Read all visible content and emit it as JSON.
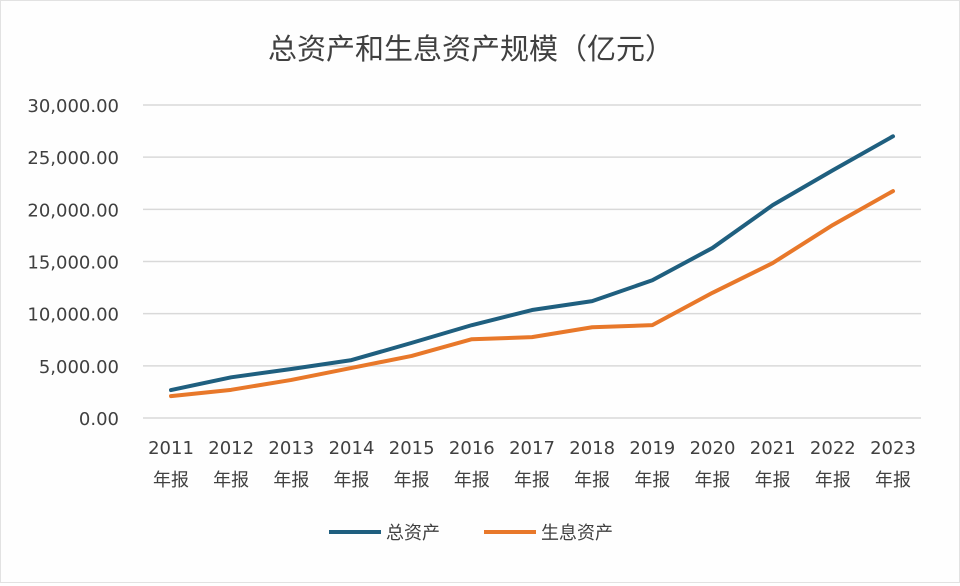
{
  "chart_data": {
    "type": "line",
    "title": "总资产和生息资产规模（亿元）",
    "categories": [
      "2011年报",
      "2012年报",
      "2013年报",
      "2014年报",
      "2015年报",
      "2016年报",
      "2017年报",
      "2018年报",
      "2019年报",
      "2020年报",
      "2021年报",
      "2022年报",
      "2023年报"
    ],
    "category_years": [
      "2011",
      "2012",
      "2013",
      "2014",
      "2015",
      "2016",
      "2017",
      "2018",
      "2019",
      "2020",
      "2021",
      "2022",
      "2023"
    ],
    "category_suffix": "年报",
    "ylim": [
      0,
      30000
    ],
    "yticks": [
      0,
      5000,
      10000,
      15000,
      20000,
      25000,
      30000
    ],
    "ytick_labels": [
      "0.00",
      "5,000.00",
      "10,000.00",
      "15,000.00",
      "20,000.00",
      "25,000.00",
      "30,000.00"
    ],
    "grid": true,
    "legend_position": "bottom",
    "series": [
      {
        "name": "总资产",
        "color": "#1f5f7f",
        "values": [
          2680,
          3900,
          4700,
          5550,
          7200,
          8900,
          10350,
          11200,
          13200,
          16300,
          20400,
          23750,
          27000
        ]
      },
      {
        "name": "生息资产",
        "color": "#e8782a",
        "values": [
          2100,
          2700,
          3650,
          4800,
          5950,
          7550,
          7750,
          8700,
          8900,
          12000,
          14850,
          18500,
          21750
        ]
      }
    ]
  }
}
